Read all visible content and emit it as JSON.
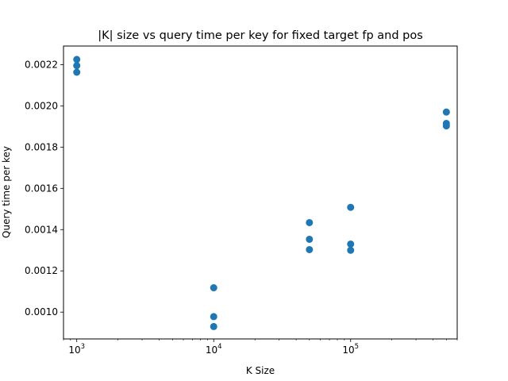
{
  "chart_data": {
    "type": "scatter",
    "title": "|K| size vs query time per key for fixed target fp and pos",
    "xlabel": "K Size",
    "ylabel": "Query time per key",
    "xscale": "log",
    "xlim": [
      800,
      600000
    ],
    "ylim": [
      0.00087,
      0.00229
    ],
    "grid": false,
    "marker_color": "#1f77b4",
    "x_major_ticks": [
      {
        "value": 1000,
        "base": "10",
        "exp": "3"
      },
      {
        "value": 10000,
        "base": "10",
        "exp": "4"
      },
      {
        "value": 100000,
        "base": "10",
        "exp": "5"
      }
    ],
    "y_ticks": [
      {
        "value": 0.001,
        "label": "0.0010"
      },
      {
        "value": 0.0012,
        "label": "0.0012"
      },
      {
        "value": 0.0014,
        "label": "0.0014"
      },
      {
        "value": 0.0016,
        "label": "0.0016"
      },
      {
        "value": 0.0018,
        "label": "0.0018"
      },
      {
        "value": 0.002,
        "label": "0.0020"
      },
      {
        "value": 0.0022,
        "label": "0.0022"
      }
    ],
    "points": [
      {
        "x": 1000,
        "y": 0.002225
      },
      {
        "x": 1000,
        "y": 0.002195
      },
      {
        "x": 1000,
        "y": 0.002163
      },
      {
        "x": 10000,
        "y": 0.001118
      },
      {
        "x": 10000,
        "y": 0.000978
      },
      {
        "x": 10000,
        "y": 0.00093
      },
      {
        "x": 50000,
        "y": 0.001434
      },
      {
        "x": 50000,
        "y": 0.001353
      },
      {
        "x": 50000,
        "y": 0.001303
      },
      {
        "x": 100000,
        "y": 0.001508
      },
      {
        "x": 100000,
        "y": 0.00133
      },
      {
        "x": 100000,
        "y": 0.0013
      },
      {
        "x": 500000,
        "y": 0.00197
      },
      {
        "x": 500000,
        "y": 0.001915
      },
      {
        "x": 500000,
        "y": 0.001903
      }
    ]
  }
}
